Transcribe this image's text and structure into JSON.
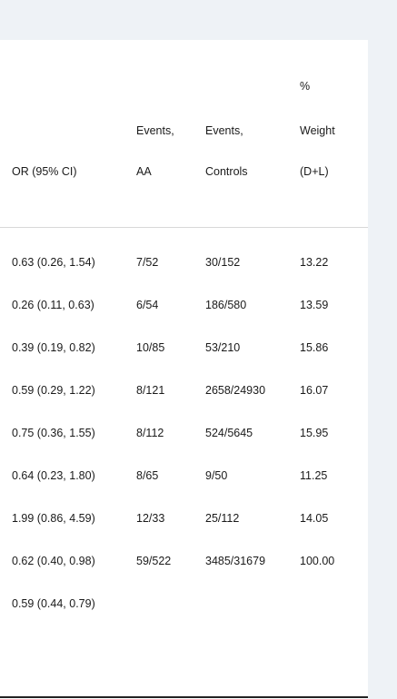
{
  "headers": {
    "or": [
      "OR (95% CI)"
    ],
    "events_aa": [
      "Events,",
      "AA"
    ],
    "events_controls": [
      "Events,",
      "Controls"
    ],
    "weight": [
      "%",
      "Weight",
      "(D+L)"
    ]
  },
  "rows": [
    {
      "or": "0.63 (0.26, 1.54)",
      "aa": "7/52",
      "controls": "30/152",
      "weight": "13.22"
    },
    {
      "or": "0.26 (0.11, 0.63)",
      "aa": "6/54",
      "controls": "186/580",
      "weight": "13.59"
    },
    {
      "or": "0.39 (0.19, 0.82)",
      "aa": "10/85",
      "controls": "53/210",
      "weight": "15.86"
    },
    {
      "or": "0.59 (0.29, 1.22)",
      "aa": "8/121",
      "controls": "2658/24930",
      "weight": "16.07"
    },
    {
      "or": "0.75 (0.36, 1.55)",
      "aa": "8/112",
      "controls": "524/5645",
      "weight": "15.95"
    },
    {
      "or": "0.64 (0.23, 1.80)",
      "aa": "8/65",
      "controls": "9/50",
      "weight": "11.25"
    },
    {
      "or": "1.99 (0.86, 4.59)",
      "aa": "12/33",
      "controls": "25/112",
      "weight": "14.05"
    },
    {
      "or": "0.62 (0.40, 0.98)",
      "aa": "59/522",
      "controls": "3485/31679",
      "weight": "100.00"
    },
    {
      "or": "0.59 (0.44, 0.79)",
      "aa": "",
      "controls": "",
      "weight": ""
    }
  ]
}
